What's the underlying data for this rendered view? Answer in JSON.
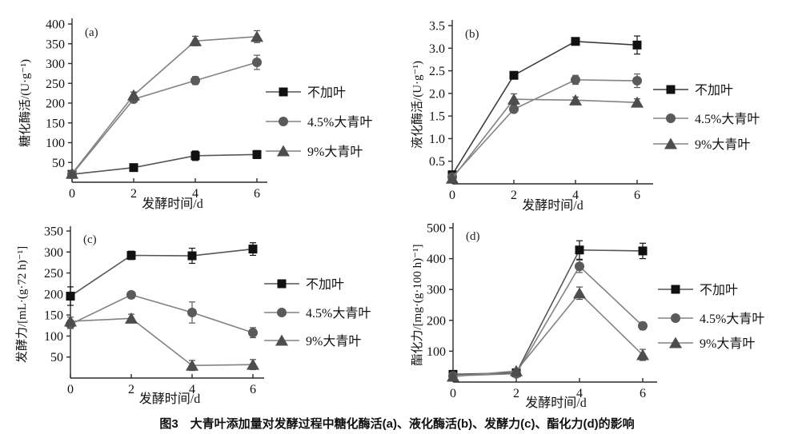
{
  "caption": {
    "text": "图3　大青叶添加量对发酵过程中糖化酶活(a)、液化酶活(b)、发酵力(c)、酯化力(d)的影响"
  },
  "chart_data": [
    {
      "type": "line",
      "panel_label": "(a)",
      "xlabel": "发酵时间/d",
      "ylabel": "糖化酶活/(U·g⁻¹)",
      "x": [
        0,
        2,
        4,
        6
      ],
      "xticks": [
        "0",
        "2",
        "4",
        "6"
      ],
      "xlim": [
        0,
        6
      ],
      "ylim": [
        0,
        400
      ],
      "ytick_values": [
        50,
        100,
        150,
        200,
        250,
        300,
        350,
        400
      ],
      "ytick_labels": [
        "50",
        "100",
        "150",
        "200",
        "250",
        "300",
        "350",
        "400"
      ],
      "grid": false,
      "legend_position": "right",
      "series": [
        {
          "name": "不加叶",
          "marker": "square",
          "marker_color": "#111111",
          "line_color": "#555555",
          "values": [
            20,
            37,
            67,
            70
          ],
          "errors": [
            4,
            5,
            12,
            10
          ]
        },
        {
          "name": "4.5%大青叶",
          "marker": "circle",
          "marker_color": "#5a5a5a",
          "line_color": "#828282",
          "values": [
            20,
            210,
            257,
            303
          ],
          "errors": [
            4,
            6,
            10,
            18
          ]
        },
        {
          "name": "9%大青叶",
          "marker": "triangle",
          "marker_color": "#4d4d4d",
          "line_color": "#828282",
          "values": [
            22,
            220,
            357,
            368
          ],
          "errors": [
            4,
            8,
            12,
            15
          ]
        }
      ]
    },
    {
      "type": "line",
      "panel_label": "(b)",
      "xlabel": "发酵时间/d",
      "ylabel": "液化酶活/(U·g⁻¹)",
      "x": [
        0,
        2,
        4,
        6
      ],
      "xticks": [
        "0",
        "2",
        "4",
        "6"
      ],
      "xlim": [
        0,
        6
      ],
      "ylim": [
        0,
        3.5
      ],
      "ytick_values": [
        0.5,
        1.0,
        1.5,
        2.0,
        2.5,
        3.0,
        3.5
      ],
      "ytick_labels": [
        "0.5",
        "1.0",
        "1.5",
        "2.0",
        "2.5",
        "3.0",
        "3.5"
      ],
      "grid": false,
      "legend_position": "right",
      "series": [
        {
          "name": "不加叶",
          "marker": "square",
          "marker_color": "#111111",
          "line_color": "#3d3d3d",
          "values": [
            0.2,
            2.4,
            3.15,
            3.07
          ],
          "errors": [
            0.03,
            0.05,
            0.07,
            0.2
          ]
        },
        {
          "name": "4.5%大青叶",
          "marker": "circle",
          "marker_color": "#5a5a5a",
          "line_color": "#828282",
          "values": [
            0.15,
            1.65,
            2.3,
            2.28
          ],
          "errors": [
            0.03,
            0.07,
            0.1,
            0.15
          ]
        },
        {
          "name": "9%大青叶",
          "marker": "triangle",
          "marker_color": "#4d4d4d",
          "line_color": "#828282",
          "values": [
            0.12,
            1.87,
            1.85,
            1.8
          ],
          "errors": [
            0.03,
            0.12,
            0.07,
            0.08
          ]
        }
      ]
    },
    {
      "type": "line",
      "panel_label": "(c)",
      "xlabel": "发酵时间/d",
      "ylabel": "发酵力/[mL·(g·72 h)⁻¹]",
      "x": [
        0,
        2,
        4,
        6
      ],
      "xticks": [
        "0",
        "2",
        "4",
        "6"
      ],
      "xlim": [
        0,
        6
      ],
      "ylim": [
        0,
        350
      ],
      "ytick_values": [
        50,
        100,
        150,
        200,
        250,
        300,
        350
      ],
      "ytick_labels": [
        "50",
        "100",
        "150",
        "200",
        "250",
        "300",
        "350"
      ],
      "grid": false,
      "legend_position": "right",
      "series": [
        {
          "name": "不加叶",
          "marker": "square",
          "marker_color": "#111111",
          "line_color": "#555555",
          "values": [
            195,
            292,
            291,
            307
          ],
          "errors": [
            22,
            10,
            18,
            15
          ]
        },
        {
          "name": "4.5%大青叶",
          "marker": "circle",
          "marker_color": "#5a5a5a",
          "line_color": "#828282",
          "values": [
            128,
            198,
            156,
            108
          ],
          "errors": [
            10,
            8,
            25,
            12
          ]
        },
        {
          "name": "9%大青叶",
          "marker": "triangle",
          "marker_color": "#4d4d4d",
          "line_color": "#828282",
          "values": [
            135,
            142,
            30,
            32
          ],
          "errors": [
            10,
            10,
            12,
            12
          ]
        }
      ]
    },
    {
      "type": "line",
      "panel_label": "(d)",
      "xlabel": "发酵时间/d",
      "ylabel": "酯化力/[mg·(g·100 h)⁻¹]",
      "x": [
        0,
        2,
        4,
        6
      ],
      "xticks": [
        "0",
        "2",
        "4",
        "6"
      ],
      "xlim": [
        0,
        6
      ],
      "ylim": [
        0,
        500
      ],
      "ytick_values": [
        100,
        200,
        300,
        400,
        500
      ],
      "ytick_labels": [
        "100",
        "200",
        "300",
        "400",
        "500"
      ],
      "grid": false,
      "legend_position": "right",
      "series": [
        {
          "name": "不加叶",
          "marker": "square",
          "marker_color": "#111111",
          "line_color": "#555555",
          "values": [
            25,
            30,
            428,
            425
          ],
          "errors": [
            5,
            5,
            30,
            25
          ]
        },
        {
          "name": "4.5%大青叶",
          "marker": "circle",
          "marker_color": "#5a5a5a",
          "line_color": "#828282",
          "values": [
            20,
            27,
            375,
            182
          ],
          "errors": [
            5,
            5,
            20,
            12
          ]
        },
        {
          "name": "9%大青叶",
          "marker": "triangle",
          "marker_color": "#4d4d4d",
          "line_color": "#828282",
          "values": [
            18,
            36,
            288,
            88
          ],
          "errors": [
            5,
            5,
            20,
            18
          ]
        }
      ]
    }
  ]
}
